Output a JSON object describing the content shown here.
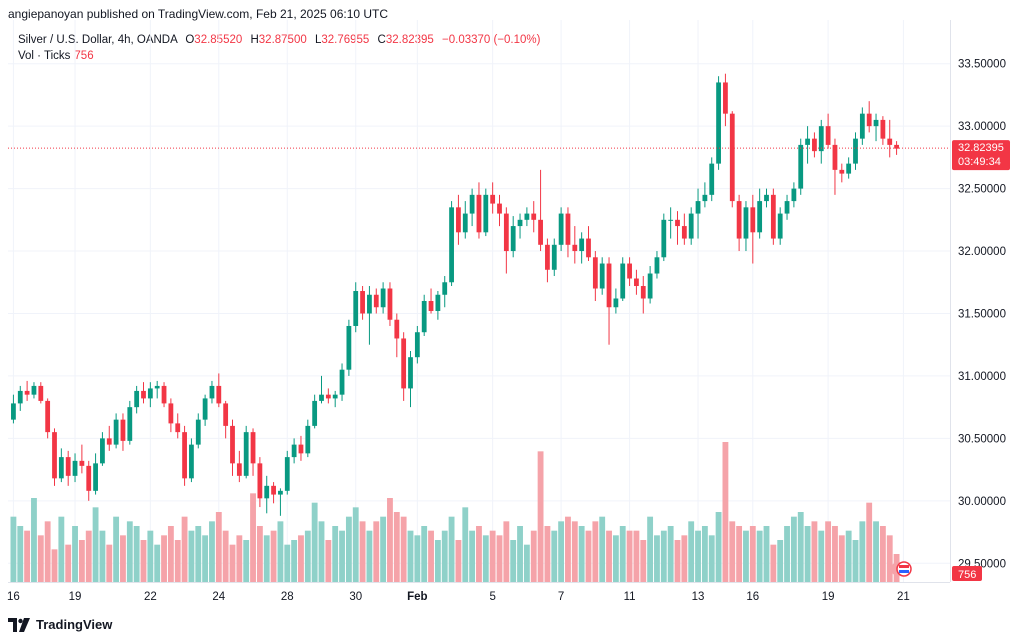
{
  "header": {
    "published": "angiepanoyan published on TradingView.com, Feb 21, 2025 06:10 UTC"
  },
  "legend": {
    "symbol": "Silver / U.S. Dollar, 4h, OANDA",
    "o_label": "O",
    "o_value": "32.85520",
    "h_label": "H",
    "h_value": "32.87500",
    "l_label": "L",
    "l_value": "32.76955",
    "c_label": "C",
    "c_value": "32.82395",
    "change": "−0.03370 (−0.10%)",
    "vol_label": "Vol · Ticks",
    "vol_value": "756"
  },
  "price_badge": {
    "price": "32.82395",
    "countdown": "03:49:34",
    "color": "#f23645"
  },
  "volume_badge": {
    "value": "756",
    "color": "#f23645"
  },
  "colors": {
    "up": "#089981",
    "down": "#f23645",
    "vol_up": "#8fd1c9",
    "vol_down": "#f5a3a9"
  },
  "footer": {
    "brand": "TradingView"
  },
  "chart_data": {
    "type": "candlestick",
    "instrument": "Silver / U.S. Dollar",
    "timeframe": "4h",
    "y_axis": {
      "range": [
        29.35,
        33.85
      ],
      "ticks": [
        "33.50000",
        "33.00000",
        "32.50000",
        "32.00000",
        "31.50000",
        "31.00000",
        "30.50000",
        "30.00000",
        "29.50000"
      ],
      "tick_values": [
        33.5,
        33.0,
        32.5,
        32.0,
        31.5,
        31.0,
        30.5,
        30.0,
        29.5
      ]
    },
    "x_axis": {
      "labels": [
        "16",
        "19",
        "22",
        "24",
        "28",
        "30",
        "Feb",
        "5",
        "7",
        "11",
        "13",
        "16",
        "19",
        "21"
      ],
      "label_index": [
        0,
        9,
        20,
        30,
        40,
        50,
        59,
        70,
        80,
        90,
        100,
        108,
        119,
        130
      ]
    },
    "last_price": 32.82395,
    "volume_max": 150,
    "candles": [
      [
        30.65,
        30.85,
        30.62,
        30.78,
        70
      ],
      [
        30.78,
        30.92,
        30.72,
        30.88,
        60
      ],
      [
        30.88,
        30.96,
        30.8,
        30.85,
        55
      ],
      [
        30.85,
        30.95,
        30.82,
        30.92,
        90
      ],
      [
        30.92,
        30.95,
        30.78,
        30.8,
        50
      ],
      [
        30.8,
        30.82,
        30.5,
        30.55,
        65
      ],
      [
        30.55,
        30.58,
        30.12,
        30.18,
        35
      ],
      [
        30.18,
        30.42,
        30.15,
        30.35,
        70
      ],
      [
        30.35,
        30.4,
        30.12,
        30.2,
        40
      ],
      [
        30.2,
        30.38,
        30.15,
        30.32,
        60
      ],
      [
        30.32,
        30.45,
        30.22,
        30.28,
        45
      ],
      [
        30.28,
        30.32,
        30.0,
        30.08,
        55
      ],
      [
        30.08,
        30.38,
        30.05,
        30.3,
        80
      ],
      [
        30.3,
        30.55,
        30.28,
        30.5,
        55
      ],
      [
        30.5,
        30.6,
        30.4,
        30.45,
        40
      ],
      [
        30.45,
        30.7,
        30.42,
        30.65,
        70
      ],
      [
        30.65,
        30.7,
        30.4,
        30.48,
        50
      ],
      [
        30.48,
        30.8,
        30.45,
        30.75,
        65
      ],
      [
        30.75,
        30.92,
        30.7,
        30.88,
        60
      ],
      [
        30.88,
        30.95,
        30.78,
        30.82,
        45
      ],
      [
        30.82,
        30.95,
        30.75,
        30.9,
        55
      ],
      [
        30.9,
        30.96,
        30.82,
        30.92,
        40
      ],
      [
        30.92,
        30.95,
        30.75,
        30.78,
        50
      ],
      [
        30.78,
        30.82,
        30.55,
        30.62,
        60
      ],
      [
        30.62,
        30.7,
        30.5,
        30.55,
        45
      ],
      [
        30.55,
        30.6,
        30.12,
        30.18,
        70
      ],
      [
        30.18,
        30.5,
        30.15,
        30.45,
        55
      ],
      [
        30.45,
        30.7,
        30.42,
        30.65,
        60
      ],
      [
        30.65,
        30.85,
        30.6,
        30.82,
        50
      ],
      [
        30.82,
        30.96,
        30.78,
        30.92,
        65
      ],
      [
        30.92,
        31.02,
        30.75,
        30.78,
        75
      ],
      [
        30.78,
        30.8,
        30.5,
        30.6,
        55
      ],
      [
        30.6,
        30.65,
        30.2,
        30.3,
        40
      ],
      [
        30.3,
        30.4,
        30.15,
        30.2,
        50
      ],
      [
        30.2,
        30.6,
        30.18,
        30.55,
        45
      ],
      [
        30.55,
        30.58,
        30.2,
        30.3,
        95
      ],
      [
        30.3,
        30.35,
        29.95,
        30.02,
        60
      ],
      [
        30.02,
        30.2,
        29.9,
        30.12,
        50
      ],
      [
        30.12,
        30.15,
        29.98,
        30.05,
        55
      ],
      [
        30.05,
        30.1,
        29.88,
        30.08,
        65
      ],
      [
        30.08,
        30.4,
        30.05,
        30.35,
        40
      ],
      [
        30.35,
        30.5,
        30.3,
        30.45,
        45
      ],
      [
        30.45,
        30.52,
        30.32,
        30.38,
        50
      ],
      [
        30.38,
        30.65,
        30.35,
        30.6,
        55
      ],
      [
        30.6,
        30.85,
        30.58,
        30.8,
        85
      ],
      [
        30.8,
        31.0,
        30.78,
        30.85,
        65
      ],
      [
        30.85,
        30.9,
        30.78,
        30.82,
        45
      ],
      [
        30.82,
        30.88,
        30.75,
        30.85,
        60
      ],
      [
        30.85,
        31.1,
        30.8,
        31.05,
        55
      ],
      [
        31.05,
        31.45,
        31.0,
        31.4,
        70
      ],
      [
        31.4,
        31.75,
        31.35,
        31.68,
        80
      ],
      [
        31.68,
        31.72,
        31.45,
        31.5,
        65
      ],
      [
        31.5,
        31.72,
        31.25,
        31.65,
        55
      ],
      [
        31.65,
        31.7,
        31.5,
        31.55,
        65
      ],
      [
        31.55,
        31.75,
        31.5,
        31.7,
        70
      ],
      [
        31.7,
        31.75,
        31.4,
        31.45,
        90
      ],
      [
        31.45,
        31.5,
        31.15,
        31.3,
        75
      ],
      [
        31.3,
        31.35,
        30.8,
        30.9,
        70
      ],
      [
        30.9,
        31.2,
        30.75,
        31.15,
        55
      ],
      [
        31.15,
        31.4,
        31.1,
        31.35,
        50
      ],
      [
        31.35,
        31.65,
        31.32,
        31.6,
        60
      ],
      [
        31.6,
        31.7,
        31.5,
        31.52,
        55
      ],
      [
        31.52,
        31.68,
        31.45,
        31.65,
        45
      ],
      [
        31.65,
        31.8,
        31.55,
        31.75,
        55
      ],
      [
        31.75,
        32.4,
        31.72,
        32.35,
        70
      ],
      [
        32.35,
        32.45,
        32.05,
        32.15,
        45
      ],
      [
        32.15,
        32.4,
        32.1,
        32.3,
        80
      ],
      [
        32.3,
        32.5,
        32.2,
        32.45,
        55
      ],
      [
        32.45,
        32.55,
        32.1,
        32.15,
        60
      ],
      [
        32.15,
        32.5,
        32.12,
        32.45,
        50
      ],
      [
        32.45,
        32.55,
        32.3,
        32.38,
        55
      ],
      [
        32.38,
        32.45,
        32.2,
        32.3,
        50
      ],
      [
        32.3,
        32.35,
        31.82,
        32.0,
        65
      ],
      [
        32.0,
        32.28,
        31.95,
        32.2,
        45
      ],
      [
        32.2,
        32.3,
        32.1,
        32.25,
        60
      ],
      [
        32.25,
        32.35,
        32.2,
        32.3,
        40
      ],
      [
        32.3,
        32.4,
        32.15,
        32.25,
        55
      ],
      [
        32.25,
        32.65,
        32.0,
        32.05,
        140
      ],
      [
        32.05,
        32.1,
        31.75,
        31.85,
        60
      ],
      [
        31.85,
        32.1,
        31.8,
        32.05,
        55
      ],
      [
        32.05,
        32.35,
        32.0,
        32.3,
        65
      ],
      [
        32.3,
        32.35,
        31.95,
        32.05,
        70
      ],
      [
        32.05,
        32.2,
        31.9,
        32.0,
        65
      ],
      [
        32.0,
        32.15,
        31.9,
        32.1,
        60
      ],
      [
        32.1,
        32.2,
        31.92,
        31.95,
        55
      ],
      [
        31.95,
        32.0,
        31.6,
        31.7,
        65
      ],
      [
        31.7,
        31.95,
        31.65,
        31.9,
        70
      ],
      [
        31.9,
        31.95,
        31.25,
        31.55,
        55
      ],
      [
        31.55,
        31.7,
        31.5,
        31.62,
        50
      ],
      [
        31.62,
        31.95,
        31.6,
        31.9,
        60
      ],
      [
        31.9,
        31.95,
        31.72,
        31.78,
        55
      ],
      [
        31.78,
        31.85,
        31.65,
        31.72,
        55
      ],
      [
        31.72,
        31.8,
        31.5,
        31.62,
        45
      ],
      [
        31.62,
        31.88,
        31.58,
        31.82,
        70
      ],
      [
        31.82,
        32.0,
        31.78,
        31.95,
        50
      ],
      [
        31.95,
        32.3,
        31.92,
        32.25,
        55
      ],
      [
        32.25,
        32.35,
        32.1,
        32.25,
        60
      ],
      [
        32.25,
        32.32,
        32.05,
        32.2,
        45
      ],
      [
        32.2,
        32.3,
        32.05,
        32.1,
        50
      ],
      [
        32.1,
        32.35,
        32.05,
        32.3,
        65
      ],
      [
        32.3,
        32.5,
        32.1,
        32.4,
        55
      ],
      [
        32.4,
        32.55,
        32.35,
        32.45,
        60
      ],
      [
        32.45,
        32.75,
        32.4,
        32.7,
        50
      ],
      [
        32.7,
        33.4,
        32.65,
        33.35,
        75
      ],
      [
        33.35,
        33.42,
        33.0,
        33.1,
        150
      ],
      [
        33.1,
        33.12,
        32.35,
        32.4,
        65
      ],
      [
        32.4,
        32.45,
        32.0,
        32.1,
        60
      ],
      [
        32.1,
        32.4,
        32.0,
        32.35,
        55
      ],
      [
        32.35,
        32.45,
        31.9,
        32.15,
        60
      ],
      [
        32.15,
        32.5,
        32.1,
        32.4,
        55
      ],
      [
        32.4,
        32.5,
        32.35,
        32.45,
        60
      ],
      [
        32.45,
        32.5,
        32.05,
        32.1,
        40
      ],
      [
        32.1,
        32.35,
        32.05,
        32.3,
        45
      ],
      [
        32.3,
        32.45,
        32.25,
        32.4,
        60
      ],
      [
        32.4,
        32.55,
        32.35,
        32.5,
        70
      ],
      [
        32.5,
        32.9,
        32.45,
        32.85,
        75
      ],
      [
        32.85,
        33.0,
        32.7,
        32.9,
        60
      ],
      [
        32.9,
        32.95,
        32.75,
        32.8,
        65
      ],
      [
        32.8,
        33.05,
        32.7,
        33.0,
        55
      ],
      [
        33.0,
        33.1,
        32.82,
        32.85,
        65
      ],
      [
        32.85,
        32.9,
        32.45,
        32.65,
        60
      ],
      [
        32.65,
        32.7,
        32.55,
        32.62,
        50
      ],
      [
        32.62,
        32.75,
        32.58,
        32.7,
        55
      ],
      [
        32.7,
        32.95,
        32.65,
        32.9,
        45
      ],
      [
        32.9,
        33.15,
        32.85,
        33.1,
        65
      ],
      [
        33.1,
        33.2,
        32.95,
        33.0,
        85
      ],
      [
        33.0,
        33.1,
        32.88,
        33.05,
        65
      ],
      [
        33.05,
        33.08,
        32.85,
        32.9,
        60
      ],
      [
        32.9,
        33.05,
        32.75,
        32.85,
        50
      ],
      [
        32.85,
        32.88,
        32.77,
        32.82,
        30
      ]
    ]
  }
}
